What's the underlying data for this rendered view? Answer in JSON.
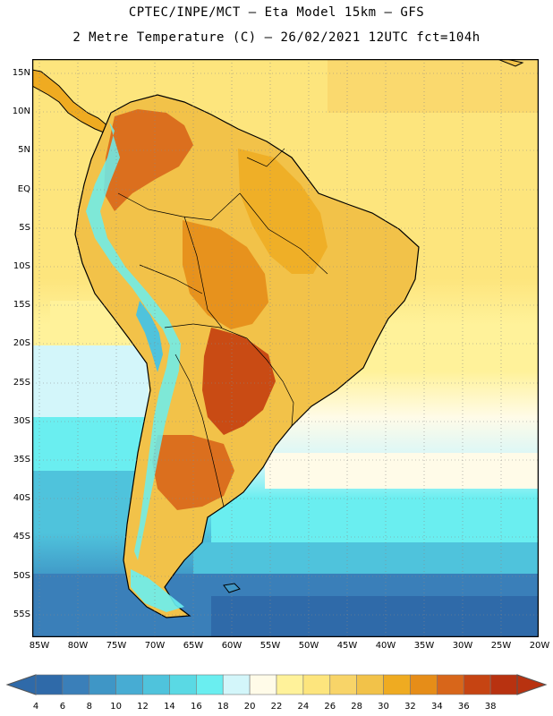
{
  "title": {
    "line1": "CPTEC/INPE/MCT –  Eta Model 15km – GFS",
    "line2": "2 Metre Temperature (C) – 26/02/2021 12UTC fct=104h"
  },
  "axes": {
    "lat_labels": [
      "15N",
      "10N",
      "5N",
      "EQ",
      "5S",
      "10S",
      "15S",
      "20S",
      "25S",
      "30S",
      "35S",
      "40S",
      "45S",
      "50S",
      "55S"
    ],
    "lon_labels": [
      "85W",
      "80W",
      "75W",
      "70W",
      "65W",
      "60W",
      "55W",
      "50W",
      "45W",
      "40W",
      "35W",
      "30W",
      "25W",
      "20W"
    ]
  },
  "colorbar": {
    "labels": [
      "4",
      "6",
      "8",
      "10",
      "12",
      "14",
      "16",
      "18",
      "20",
      "22",
      "24",
      "26",
      "28",
      "30",
      "32",
      "34",
      "36",
      "38"
    ],
    "colors": [
      "#2f6aa9",
      "#3a7fb9",
      "#3f96c6",
      "#47acd3",
      "#4fc3dc",
      "#5ad9e4",
      "#6aeef0",
      "#d3f6fa",
      "#fffbe8",
      "#fff29a",
      "#fde57d",
      "#f8d468",
      "#f2c249",
      "#efab21",
      "#e68d18",
      "#d8661a",
      "#c64412",
      "#b83210"
    ],
    "low_color": "#2f6aa9",
    "high_color": "#b83210"
  }
}
